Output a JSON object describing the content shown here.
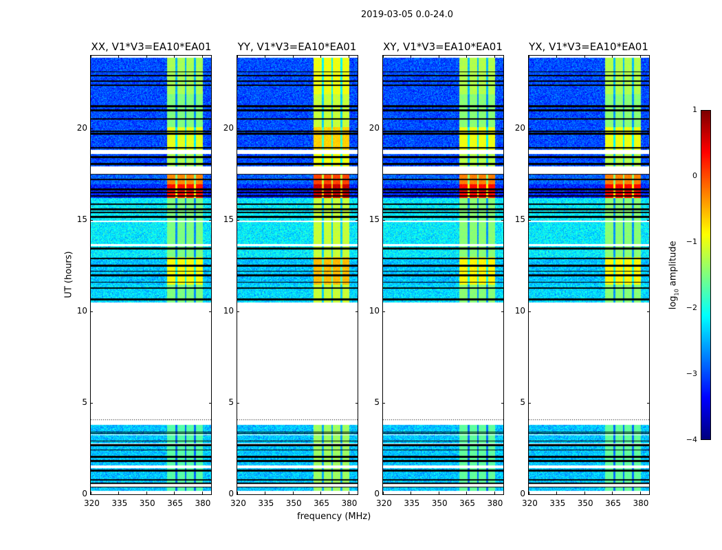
{
  "figure_title": "2019-03-05 0.0-24.0",
  "chart_data": {
    "type": "heatmap",
    "title": "2019-03-05 0.0-24.0",
    "xlabel": "frequency (MHz)",
    "ylabel": "UT (hours)",
    "xlim": [
      320,
      385
    ],
    "ylim": [
      0,
      24
    ],
    "xticks": [
      "320",
      "335",
      "350",
      "365",
      "380"
    ],
    "yticks": [
      "0",
      "5",
      "10",
      "15",
      "20"
    ],
    "xtick_values": [
      320,
      335,
      350,
      365,
      380
    ],
    "ytick_values": [
      0,
      5,
      10,
      15,
      20
    ],
    "panels": [
      {
        "title": "XX, V1*V3=EA10*EA01",
        "band_offset": 0
      },
      {
        "title": "YY, V1*V3=EA10*EA01",
        "band_offset": 0.35
      },
      {
        "title": "XY, V1*V3=EA10*EA01",
        "band_offset": 0.05
      },
      {
        "title": "YX, V1*V3=EA10*EA01",
        "band_offset": 0.05
      }
    ],
    "colorbar": {
      "label": "log10 amplitude",
      "label_main": "log",
      "label_sub": "10",
      "label_rest": " amplitude",
      "colormap": "jet",
      "vmin": -4,
      "vmax": 1,
      "ticks": [
        "1",
        "0",
        "−1",
        "−2",
        "−3",
        "−4"
      ],
      "tick_values": [
        1,
        0,
        -1,
        -2,
        -3,
        -4
      ]
    },
    "rfi_band_mhz": [
      361,
      380.5
    ],
    "rfi_band_dips_mhz": [
      366,
      371,
      376
    ],
    "segments_hours": [
      {
        "t": [
          21.9,
          23.9
        ],
        "background": -3.0,
        "band": -1.3,
        "flag_frac": 0.25
      },
      {
        "t": [
          20.1,
          21.9
        ],
        "background": -3.0,
        "band": -1.5,
        "flag_frac": 0.15
      },
      {
        "t": [
          18.85,
          20.1
        ],
        "background": -3.0,
        "band": -1.0,
        "flag_frac": 0.2
      },
      {
        "t": [
          17.95,
          18.65
        ],
        "background": -3.0,
        "band": -1.3,
        "flag_frac": 0.3
      },
      {
        "t": [
          17.0,
          17.55
        ],
        "background": -2.9,
        "band": -0.3,
        "flag_frac": 0.3
      },
      {
        "t": [
          16.25,
          17.0
        ],
        "background": -3.2,
        "band": 0.3,
        "flag_frac": 0.6
      },
      {
        "t": [
          13.0,
          16.25
        ],
        "background": -2.2,
        "band": -1.5,
        "flag_frac": 0.12
      },
      {
        "t": [
          11.5,
          13.0
        ],
        "background": -2.4,
        "band": -0.9,
        "flag_frac": 0.5
      },
      {
        "t": [
          10.5,
          11.5
        ],
        "background": -2.3,
        "band": -1.5,
        "flag_frac": 0.25
      },
      {
        "t": [
          0.2,
          3.8
        ],
        "background": -2.4,
        "band": -1.7,
        "flag_frac": 0.15
      }
    ],
    "blank_rows_hours": [
      [
        18.65,
        18.85
      ],
      [
        17.55,
        17.95
      ],
      [
        14.9,
        15.0
      ],
      [
        13.6,
        13.7
      ],
      [
        3.25,
        3.3
      ],
      [
        2.75,
        2.8
      ],
      [
        1.45,
        1.6
      ],
      [
        0.45,
        0.6
      ]
    ],
    "dotted_row_hours": 4.1
  }
}
